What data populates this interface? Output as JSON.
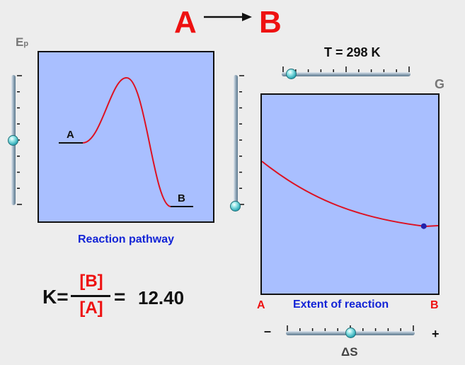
{
  "header": {
    "reactant": "A",
    "product": "B"
  },
  "energy_panel": {
    "y_label": "E",
    "y_label_sub": "p",
    "label_a": "A",
    "label_b": "B",
    "caption": "Reaction pathway"
  },
  "free_energy_panel": {
    "y_label": "G",
    "x_label_left": "A",
    "x_label_right": "B",
    "caption": "Extent of reaction",
    "equilibrium_point": {
      "extent": 0.92
    }
  },
  "temperature_slider": {
    "label": "T = 298 K",
    "value_fraction": 0.07
  },
  "entropy_slider": {
    "label": "ΔS",
    "minus": "–",
    "plus": "+",
    "value_fraction": 0.5
  },
  "energy_slider_left": {
    "value_fraction": 0.5
  },
  "energy_slider_right": {
    "value_fraction": 1.0
  },
  "equilibrium": {
    "k_label": "K=",
    "numerator": "[B]",
    "denominator": "[A]",
    "equals": "=",
    "value": "12.40"
  },
  "colors": {
    "panel_fill": "#a9bfff",
    "curve": "#dd1122",
    "title_red": "#ee1111",
    "caption_blue": "#1324d6",
    "knob": "#2fa9b6"
  }
}
